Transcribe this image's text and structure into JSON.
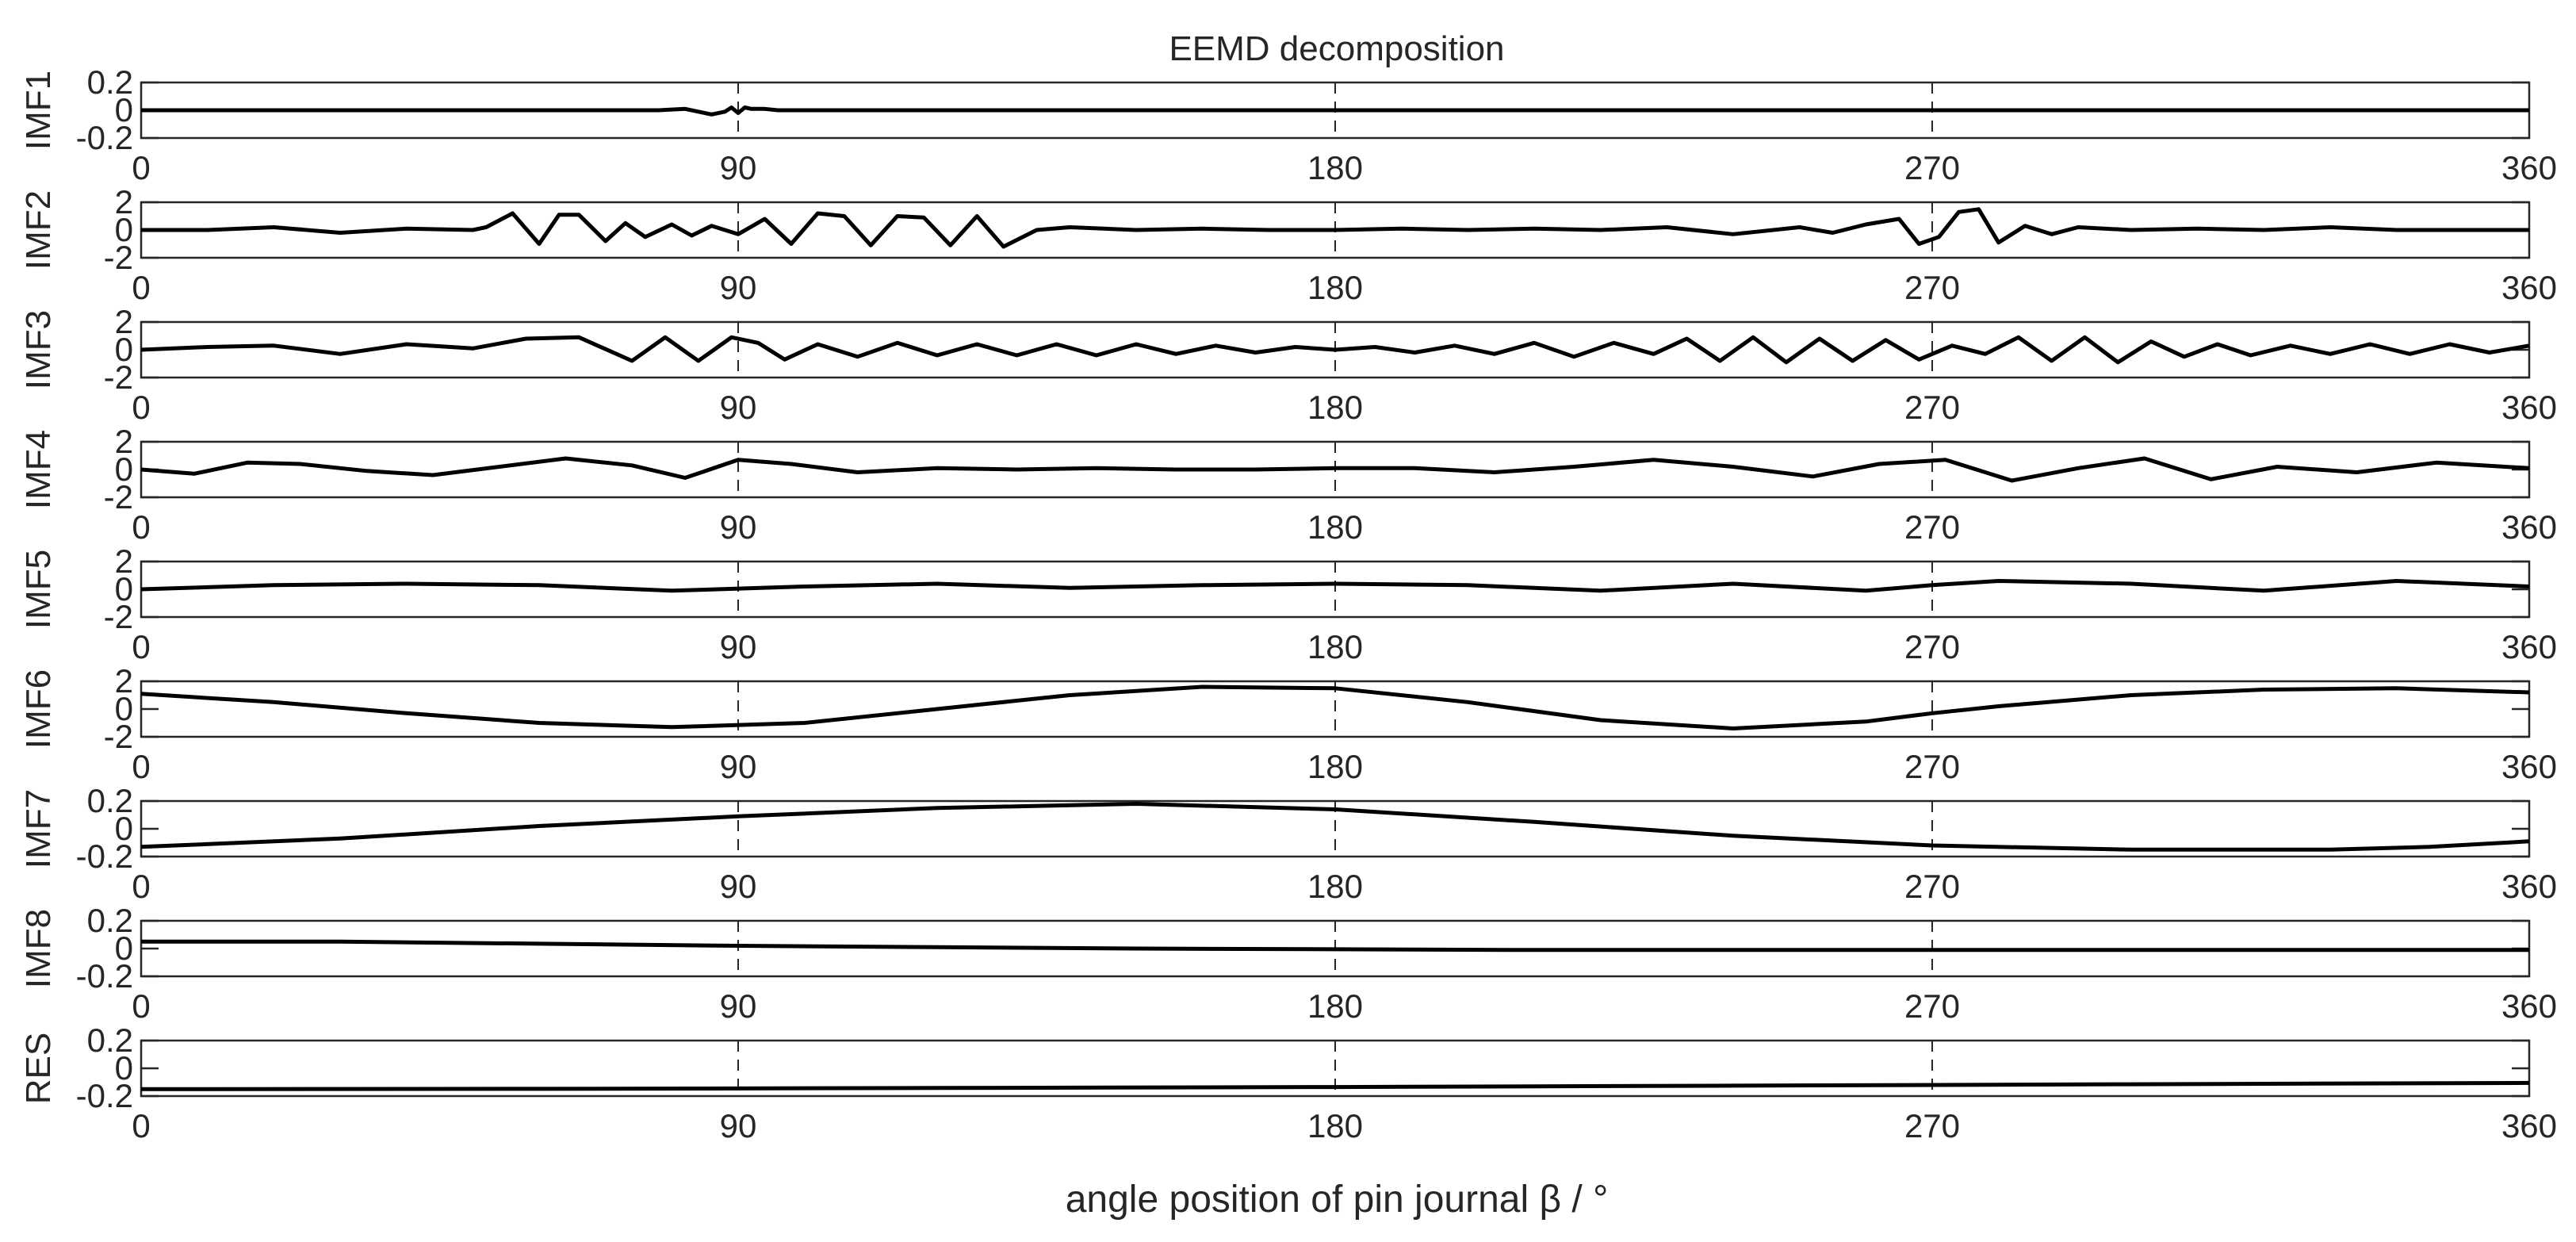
{
  "chart_data": {
    "type": "line",
    "title": "EEMD decomposition",
    "xlabel": "angle position of pin journal β / °",
    "xlim": [
      0,
      360
    ],
    "xticks": [
      0,
      90,
      180,
      270,
      360
    ],
    "grid_x": true,
    "line_color": "#000000",
    "axis_color": "#262626",
    "panels": [
      {
        "ylabel": "IMF1",
        "ylim": [
          -0.2,
          0.2
        ],
        "ytick_labels": [
          "0.2",
          "0",
          "-0.2"
        ],
        "x": [
          0,
          78,
          82,
          84,
          86,
          88,
          89,
          90,
          91,
          92,
          94,
          96,
          100,
          360
        ],
        "y": [
          0,
          0,
          0.01,
          -0.01,
          -0.03,
          -0.01,
          0.02,
          -0.02,
          0.02,
          0.01,
          0.01,
          0,
          0,
          0
        ]
      },
      {
        "ylabel": "IMF2",
        "ylim": [
          -2,
          2
        ],
        "ytick_labels": [
          "2",
          "0",
          "-2"
        ],
        "x": [
          0,
          10,
          20,
          30,
          40,
          50,
          52,
          56,
          60,
          63,
          66,
          70,
          73,
          76,
          80,
          83,
          86,
          90,
          94,
          98,
          102,
          106,
          110,
          114,
          118,
          122,
          126,
          130,
          135,
          140,
          150,
          160,
          170,
          180,
          190,
          200,
          210,
          220,
          230,
          240,
          250,
          255,
          260,
          265,
          268,
          271,
          274,
          277,
          280,
          284,
          288,
          292,
          300,
          310,
          320,
          330,
          340,
          350,
          360
        ],
        "y": [
          0,
          0,
          0.2,
          -0.2,
          0.1,
          0,
          0.2,
          1.2,
          -1,
          1.1,
          1.1,
          -0.8,
          0.5,
          -0.5,
          0.4,
          -0.4,
          0.3,
          -0.3,
          0.8,
          -1,
          1.2,
          1.0,
          -1.1,
          1.0,
          0.9,
          -1.1,
          1.0,
          -1.2,
          0,
          0.2,
          0,
          0.1,
          0,
          0,
          0.1,
          0,
          0.1,
          0,
          0.2,
          -0.3,
          0.2,
          -0.2,
          0.4,
          0.8,
          -1.0,
          -0.5,
          1.3,
          1.5,
          -0.9,
          0.3,
          -0.3,
          0.2,
          0,
          0.1,
          0,
          0.2,
          0,
          0,
          0
        ]
      },
      {
        "ylabel": "IMF3",
        "ylim": [
          -2,
          2
        ],
        "ytick_labels": [
          "2",
          "0",
          "-2"
        ],
        "x": [
          0,
          10,
          20,
          30,
          40,
          50,
          58,
          66,
          74,
          79,
          84,
          89,
          93,
          97,
          102,
          108,
          114,
          120,
          126,
          132,
          138,
          144,
          150,
          156,
          162,
          168,
          174,
          180,
          186,
          192,
          198,
          204,
          210,
          216,
          222,
          228,
          233,
          238,
          243,
          248,
          253,
          258,
          263,
          268,
          273,
          278,
          283,
          288,
          293,
          298,
          303,
          308,
          313,
          318,
          324,
          330,
          336,
          342,
          348,
          354,
          360
        ],
        "y": [
          0,
          0.2,
          0.3,
          -0.3,
          0.4,
          0.1,
          0.8,
          0.9,
          -0.8,
          0.9,
          -0.8,
          0.9,
          0.5,
          -0.7,
          0.4,
          -0.5,
          0.5,
          -0.4,
          0.4,
          -0.4,
          0.4,
          -0.4,
          0.4,
          -0.3,
          0.3,
          -0.2,
          0.2,
          0,
          0.2,
          -0.2,
          0.3,
          -0.3,
          0.5,
          -0.5,
          0.5,
          -0.3,
          0.8,
          -0.8,
          0.9,
          -0.9,
          0.8,
          -0.8,
          0.7,
          -0.7,
          0.3,
          -0.3,
          0.9,
          -0.8,
          0.9,
          -0.9,
          0.6,
          -0.5,
          0.4,
          -0.4,
          0.3,
          -0.3,
          0.4,
          -0.3,
          0.4,
          -0.2,
          0.3
        ]
      },
      {
        "ylabel": "IMF4",
        "ylim": [
          -2,
          2
        ],
        "ytick_labels": [
          "2",
          "0",
          "-2"
        ],
        "x": [
          0,
          8,
          16,
          24,
          34,
          44,
          54,
          64,
          74,
          82,
          90,
          98,
          108,
          120,
          132,
          144,
          156,
          168,
          180,
          192,
          204,
          216,
          228,
          240,
          252,
          262,
          272,
          282,
          292,
          302,
          312,
          322,
          334,
          346,
          360
        ],
        "y": [
          0,
          -0.3,
          0.5,
          0.4,
          -0.1,
          -0.4,
          0.2,
          0.8,
          0.3,
          -0.6,
          0.7,
          0.4,
          -0.2,
          0.1,
          0,
          0.1,
          0,
          0,
          0.1,
          0.1,
          -0.2,
          0.2,
          0.7,
          0.2,
          -0.5,
          0.4,
          0.7,
          -0.8,
          0.1,
          0.8,
          -0.7,
          0.2,
          -0.2,
          0.5,
          0.1
        ]
      },
      {
        "ylabel": "IMF5",
        "ylim": [
          -2,
          2
        ],
        "ytick_labels": [
          "2",
          "0",
          "-2"
        ],
        "x": [
          0,
          20,
          40,
          60,
          80,
          100,
          120,
          140,
          160,
          180,
          200,
          220,
          240,
          260,
          270,
          280,
          300,
          320,
          340,
          360
        ],
        "y": [
          0,
          0.3,
          0.4,
          0.3,
          -0.1,
          0.2,
          0.4,
          0.1,
          0.3,
          0.4,
          0.3,
          -0.1,
          0.4,
          -0.1,
          0.3,
          0.6,
          0.4,
          -0.1,
          0.6,
          0.2
        ]
      },
      {
        "ylabel": "IMF6",
        "ylim": [
          -2,
          2
        ],
        "ytick_labels": [
          "2",
          "0",
          "-2"
        ],
        "x": [
          0,
          20,
          40,
          60,
          80,
          100,
          120,
          140,
          160,
          180,
          200,
          220,
          240,
          260,
          270,
          280,
          300,
          320,
          340,
          360
        ],
        "y": [
          1.1,
          0.5,
          -0.3,
          -1.0,
          -1.3,
          -1.0,
          0,
          1.0,
          1.6,
          1.5,
          0.5,
          -0.8,
          -1.4,
          -0.9,
          -0.3,
          0.2,
          1.0,
          1.4,
          1.5,
          1.2
        ]
      },
      {
        "ylabel": "IMF7",
        "ylim": [
          -0.2,
          0.2
        ],
        "ytick_labels": [
          "0.2",
          "0",
          "-0.2"
        ],
        "x": [
          0,
          30,
          60,
          90,
          120,
          150,
          180,
          210,
          240,
          270,
          300,
          330,
          345,
          360
        ],
        "y": [
          -0.13,
          -0.07,
          0.02,
          0.09,
          0.15,
          0.18,
          0.14,
          0.05,
          -0.05,
          -0.12,
          -0.15,
          -0.15,
          -0.13,
          -0.09
        ]
      },
      {
        "ylabel": "IMF8",
        "ylim": [
          -0.2,
          0.2
        ],
        "ytick_labels": [
          "0.2",
          "0",
          "-0.2"
        ],
        "x": [
          0,
          30,
          60,
          90,
          120,
          150,
          180,
          210,
          240,
          270,
          300,
          330,
          360
        ],
        "y": [
          0.05,
          0.05,
          0.035,
          0.02,
          0.01,
          0,
          -0.005,
          -0.01,
          -0.01,
          -0.01,
          -0.01,
          -0.01,
          -0.01
        ]
      },
      {
        "ylabel": "RES",
        "ylim": [
          -0.2,
          0.2
        ],
        "ytick_labels": [
          "0.2",
          "0",
          "-0.2"
        ],
        "x": [
          0,
          60,
          120,
          180,
          240,
          300,
          360
        ],
        "y": [
          -0.15,
          -0.148,
          -0.142,
          -0.135,
          -0.125,
          -0.115,
          -0.105
        ]
      }
    ]
  }
}
